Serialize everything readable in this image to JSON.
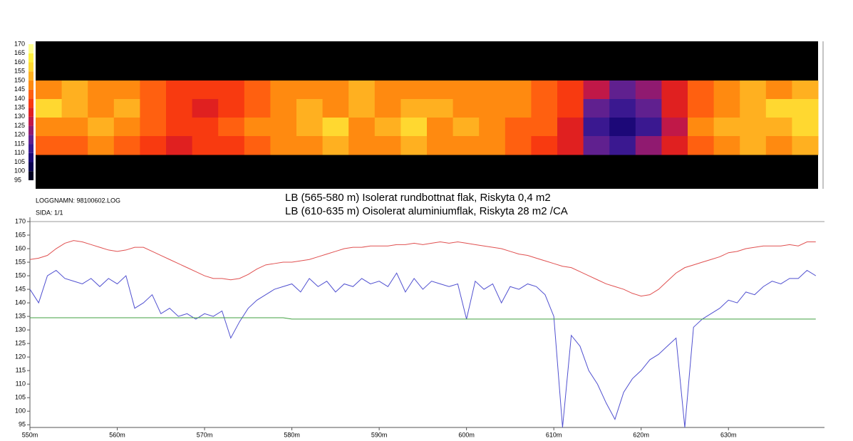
{
  "chart_data": [
    {
      "type": "heatmap",
      "colorbar": {
        "ticks": [
          170,
          165,
          160,
          155,
          150,
          145,
          140,
          135,
          130,
          125,
          120,
          115,
          110,
          105,
          100,
          95
        ],
        "colors": [
          "#000020",
          "#0a0050",
          "#1c0878",
          "#3a1890",
          "#60208f",
          "#901a70",
          "#c01848",
          "#e02020",
          "#f83a10",
          "#ff6010",
          "#ff8a10",
          "#ffb020",
          "#ffd830",
          "#fff040",
          "#ffff90"
        ]
      },
      "values": [
        [
          148,
          152,
          146,
          145,
          140,
          138,
          135,
          137,
          142,
          145,
          146,
          148,
          150,
          147,
          145,
          146,
          148,
          147,
          145,
          143,
          138,
          128,
          118,
          122,
          130,
          140,
          146,
          150,
          148,
          152
        ],
        [
          155,
          150,
          147,
          152,
          142,
          136,
          134,
          138,
          144,
          147,
          150,
          146,
          152,
          148,
          150,
          154,
          147,
          149,
          146,
          142,
          135,
          115,
          110,
          118,
          132,
          142,
          148,
          152,
          155,
          158
        ],
        [
          146,
          148,
          150,
          145,
          140,
          135,
          137,
          140,
          146,
          148,
          152,
          156,
          148,
          150,
          155,
          146,
          152,
          148,
          144,
          140,
          132,
          112,
          105,
          114,
          128,
          146,
          150,
          154,
          150,
          156
        ],
        [
          144,
          142,
          146,
          140,
          136,
          134,
          136,
          138,
          143,
          146,
          148,
          150,
          147,
          146,
          150,
          145,
          148,
          146,
          143,
          138,
          130,
          118,
          112,
          120,
          130,
          142,
          147,
          150,
          148,
          150
        ]
      ]
    },
    {
      "type": "line",
      "log_name": "LOGGNAMN: 98100602.LOG",
      "page": "SIDA: 1/1",
      "annotations": [
        "LB (565-580 m)  Isolerat rundbottnat flak, Riskyta 0,4 m2",
        "LB (610-635 m) Oisolerat aluminiumflak, Riskyta 28 m2 /CA"
      ],
      "xlim": [
        550,
        641
      ],
      "ylim": [
        94,
        170
      ],
      "xticks": [
        {
          "value": 550,
          "label": "550m"
        },
        {
          "value": 560,
          "label": "560m"
        },
        {
          "value": 570,
          "label": "570m"
        },
        {
          "value": 580,
          "label": "580m"
        },
        {
          "value": 590,
          "label": "590m"
        },
        {
          "value": 600,
          "label": "600m"
        },
        {
          "value": 610,
          "label": "610m"
        },
        {
          "value": 620,
          "label": "620m"
        },
        {
          "value": 630,
          "label": "630m"
        }
      ],
      "yticks": [
        170,
        165,
        160,
        155,
        150,
        145,
        140,
        135,
        130,
        125,
        120,
        115,
        110,
        105,
        100,
        95
      ],
      "grid": false,
      "x": [
        550,
        551,
        552,
        553,
        554,
        555,
        556,
        557,
        558,
        559,
        560,
        561,
        562,
        563,
        564,
        565,
        566,
        567,
        568,
        569,
        570,
        571,
        572,
        573,
        574,
        575,
        576,
        577,
        578,
        579,
        580,
        581,
        582,
        583,
        584,
        585,
        586,
        587,
        588,
        589,
        590,
        591,
        592,
        593,
        594,
        595,
        596,
        597,
        598,
        599,
        600,
        601,
        602,
        603,
        604,
        605,
        606,
        607,
        608,
        609,
        610,
        611,
        612,
        613,
        614,
        615,
        616,
        617,
        618,
        619,
        620,
        621,
        622,
        623,
        624,
        625,
        626,
        627,
        628,
        629,
        630,
        631,
        632,
        633,
        634,
        635,
        636,
        637,
        638,
        639,
        640
      ],
      "series": [
        {
          "color": "#e05050",
          "values": [
            156,
            156.5,
            157.5,
            160,
            162,
            163,
            162.5,
            161.5,
            160.5,
            159.5,
            159,
            159.5,
            160.5,
            160.5,
            159,
            157.5,
            156,
            154.5,
            153,
            151.5,
            150,
            149,
            149,
            148.5,
            149,
            150.5,
            152.5,
            154,
            154.5,
            155,
            155,
            155.5,
            156,
            157,
            158,
            159,
            160,
            160.5,
            160.5,
            161,
            161,
            161,
            161.5,
            161.5,
            162,
            161.5,
            162,
            162.5,
            162,
            162.5,
            162,
            161.5,
            161,
            160.5,
            160,
            159,
            158,
            157.5,
            156.5,
            155.5,
            154.5,
            153.5,
            153,
            151.5,
            150,
            148.5,
            147,
            146,
            145,
            143.5,
            142.5,
            143,
            145,
            148,
            151,
            153,
            154,
            155,
            156,
            157,
            158.5,
            159,
            160,
            160.5,
            161,
            161,
            161,
            161.5,
            161,
            162.5,
            162.5
          ]
        },
        {
          "color": "#5050d0",
          "values": [
            145,
            140,
            150,
            152,
            149,
            148,
            147,
            149,
            146,
            149,
            147,
            150,
            138,
            140,
            143,
            136,
            138,
            135,
            136,
            134,
            136,
            135,
            137,
            127,
            133,
            138,
            141,
            143,
            145,
            146,
            147,
            144,
            149,
            146,
            148,
            144,
            147,
            146,
            149,
            147,
            148,
            146,
            151,
            144,
            149,
            145,
            148,
            147,
            146,
            147,
            134,
            148,
            145,
            147,
            140,
            146,
            145,
            147,
            146,
            143,
            135,
            94,
            128,
            124,
            115,
            110,
            103,
            97,
            107,
            112,
            115,
            119,
            121,
            124,
            127,
            94,
            131,
            134,
            136,
            138,
            141,
            140,
            144,
            143,
            146,
            148,
            147,
            149,
            149,
            152,
            150
          ]
        },
        {
          "color": "#40a040",
          "values": [
            134.5,
            134.5,
            134.5,
            134.5,
            134.5,
            134.5,
            134.5,
            134.5,
            134.5,
            134.5,
            134.5,
            134.5,
            134.5,
            134.5,
            134.5,
            134.5,
            134.5,
            134.5,
            134.5,
            134.5,
            134.5,
            134.5,
            134.5,
            134.5,
            134.5,
            134.5,
            134.5,
            134.5,
            134.5,
            134.5,
            134,
            134,
            134,
            134,
            134,
            134,
            134,
            134,
            134,
            134,
            134,
            134,
            134,
            134,
            134,
            134,
            134,
            134,
            134,
            134,
            134,
            134,
            134,
            134,
            134,
            134,
            134,
            134,
            134,
            134,
            134,
            134,
            134,
            134,
            134,
            134,
            134,
            134,
            134,
            134,
            134,
            134,
            134,
            134,
            134,
            134,
            134,
            134,
            134,
            134,
            134,
            134,
            134,
            134,
            134,
            134,
            134,
            134,
            134,
            134,
            134
          ]
        }
      ]
    }
  ]
}
